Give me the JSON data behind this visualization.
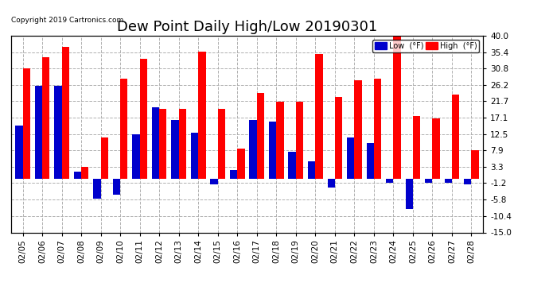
{
  "title": "Dew Point Daily High/Low 20190301",
  "copyright": "Copyright 2019 Cartronics.com",
  "dates": [
    "02/05",
    "02/06",
    "02/07",
    "02/08",
    "02/09",
    "02/10",
    "02/11",
    "02/12",
    "02/13",
    "02/14",
    "02/15",
    "02/16",
    "02/17",
    "02/18",
    "02/19",
    "02/20",
    "02/21",
    "02/22",
    "02/23",
    "02/24",
    "02/25",
    "02/26",
    "02/27",
    "02/28"
  ],
  "high": [
    31.0,
    34.0,
    37.0,
    3.3,
    11.5,
    28.0,
    33.5,
    19.5,
    19.5,
    35.5,
    19.5,
    8.5,
    24.0,
    21.5,
    21.5,
    35.0,
    23.0,
    27.5,
    28.0,
    40.0,
    17.5,
    17.0,
    23.5,
    7.9
  ],
  "low": [
    15.0,
    26.0,
    26.0,
    2.0,
    -5.5,
    -4.5,
    12.5,
    20.0,
    16.5,
    13.0,
    -1.5,
    2.5,
    16.5,
    16.0,
    7.5,
    5.0,
    -2.5,
    11.5,
    10.0,
    -1.0,
    -8.5,
    -1.0,
    -1.0,
    -1.5
  ],
  "high_color": "#ff0000",
  "low_color": "#0000cc",
  "bg_color": "#ffffff",
  "grid_color": "#b0b0b0",
  "yticks": [
    -15.0,
    -10.4,
    -5.8,
    -1.2,
    3.3,
    7.9,
    12.5,
    17.1,
    21.7,
    26.2,
    30.8,
    35.4,
    40.0
  ],
  "ylabel_right": [
    "-15.0",
    "-10.4",
    "-5.8",
    "-1.2",
    "3.3",
    "7.9",
    "12.5",
    "17.1",
    "21.7",
    "26.2",
    "30.8",
    "35.4",
    "40.0"
  ],
  "ylim": [
    -15.0,
    40.0
  ],
  "bar_width": 0.38,
  "title_fontsize": 13,
  "tick_fontsize": 7.5,
  "legend_low_color": "#0000cc",
  "legend_high_color": "#ff0000",
  "legend_label_low": "Low  (°F)",
  "legend_label_high": "High  (°F)"
}
